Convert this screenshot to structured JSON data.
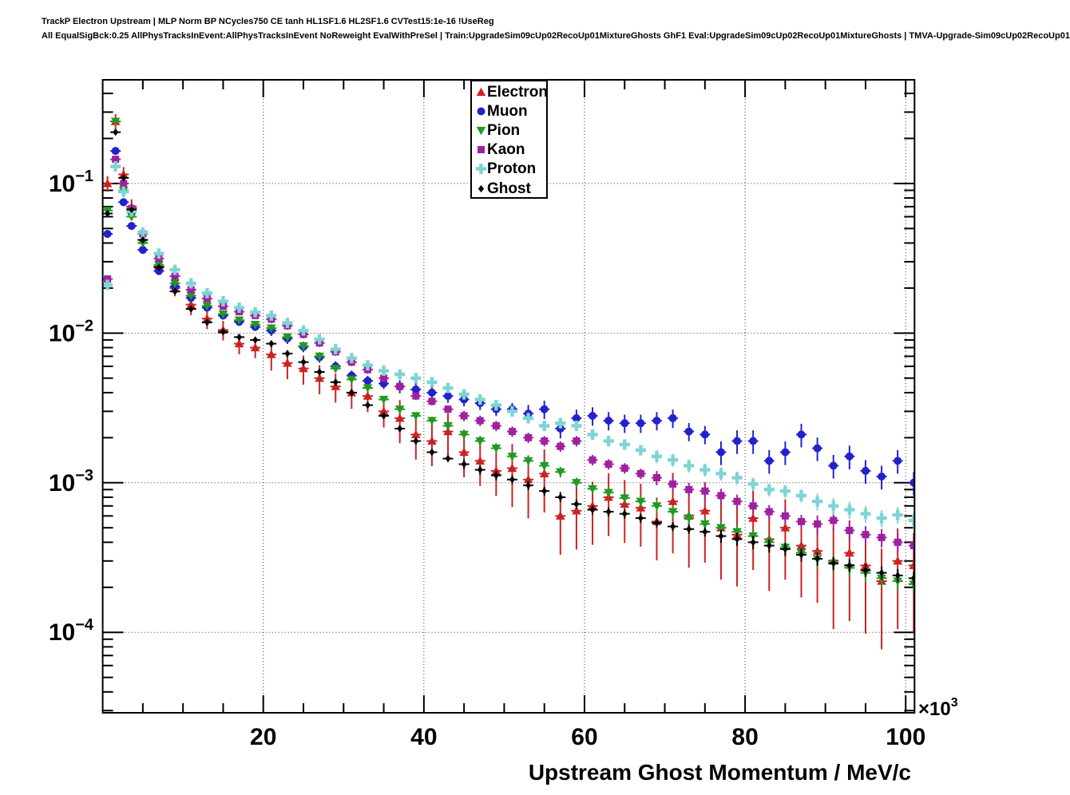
{
  "header": {
    "line1": "TrackP Electron Upstream | MLP Norm BP NCycles750 CE tanh HL1SF1.6 HL2SF1.6 CVTest15:1e-16 !UseReg",
    "line2": "All EqualSigBck:0.25 AllPhysTracksInEvent:AllPhysTracksInEvent NoReweight EvalWithPreSel | Train:UpgradeSim09cUp02RecoUp01MixtureGhosts GhF1 Eval:UpgradeSim09cUp02RecoUp01MixtureGhosts | TMVA-Upgrade-Sim09cUp02RecoUp01"
  },
  "chart_data": {
    "type": "scatter",
    "title": "",
    "xlabel": "Upstream Ghost Momentum / MeV/c",
    "ylabel": "",
    "x_multiplier": {
      "base": "×10",
      "exp": "3"
    },
    "xlim": [
      0,
      101.1
    ],
    "ylim": [
      2.9e-05,
      0.493
    ],
    "x_ticks": [
      20,
      40,
      60,
      80,
      100
    ],
    "x_minor_step": 5,
    "y_major_exponents": [
      -1,
      -2,
      -3,
      -4
    ],
    "y_scale": "log",
    "grid": "dotted",
    "legend_position": "top-center",
    "legend_labels": [
      "Electron",
      "Muon",
      "Pion",
      "Kaon",
      "Proton",
      "Ghost"
    ],
    "x": [
      0.6,
      1.6,
      2.6,
      3.6,
      5,
      7,
      9,
      11,
      13,
      15,
      17,
      19,
      21,
      23,
      25,
      27,
      29,
      31,
      33,
      35,
      37,
      39,
      41,
      43,
      45,
      47,
      49,
      51,
      53,
      55,
      57,
      59,
      61,
      63,
      65,
      67,
      69,
      71,
      73,
      75,
      77,
      79,
      81,
      83,
      85,
      87,
      89,
      91,
      93,
      95,
      97,
      99,
      101
    ],
    "series": [
      {
        "name": "Electron",
        "color": "#cc2222",
        "marker": "triangle-up",
        "values": [
          0.1,
          0.26,
          0.115,
          0.07,
          0.042,
          0.028,
          0.02,
          0.0155,
          0.0125,
          0.0105,
          0.0085,
          0.008,
          0.0072,
          0.0063,
          0.0058,
          0.005,
          0.0044,
          0.004,
          0.0038,
          0.003,
          0.0027,
          0.0021,
          0.0019,
          0.0022,
          0.0016,
          0.0014,
          0.0012,
          0.00125,
          0.00105,
          0.00115,
          0.0006,
          0.00065,
          0.0007,
          0.0008,
          0.00072,
          0.00068,
          0.00055,
          0.00075,
          0.0006,
          0.00065,
          0.0005,
          0.00045,
          0.00058,
          0.00042,
          0.0005,
          0.00038,
          0.00035,
          0.0003,
          0.00034,
          0.00028,
          0.00022,
          0.0003,
          0.00028
        ],
        "err_frac": [
          0.12,
          0.12,
          0.12,
          0.12,
          0.12,
          0.12,
          0.12,
          0.15,
          0.15,
          0.15,
          0.15,
          0.15,
          0.22,
          0.22,
          0.22,
          0.22,
          0.22,
          0.22,
          0.22,
          0.22,
          0.32,
          0.32,
          0.32,
          0.32,
          0.32,
          0.32,
          0.32,
          0.45,
          0.45,
          0.45,
          0.45,
          0.45,
          0.45,
          0.45,
          0.45,
          0.45,
          0.45,
          0.55,
          0.55,
          0.55,
          0.55,
          0.55,
          0.55,
          0.55,
          0.55,
          0.55,
          0.55,
          0.65,
          0.65,
          0.65,
          0.65,
          0.65,
          0.65
        ]
      },
      {
        "name": "Muon",
        "color": "#2222cc",
        "marker": "circle",
        "values": [
          0.046,
          0.165,
          0.075,
          0.052,
          0.036,
          0.026,
          0.0205,
          0.0172,
          0.0148,
          0.0131,
          0.0119,
          0.011,
          0.0104,
          0.0092,
          0.0081,
          0.0069,
          0.006,
          0.0052,
          0.0048,
          0.0046,
          0.0044,
          0.0042,
          0.004,
          0.0038,
          0.0036,
          0.0034,
          0.0031,
          0.0031,
          0.0029,
          0.0031,
          0.0023,
          0.0027,
          0.0028,
          0.0026,
          0.0025,
          0.0025,
          0.0026,
          0.0027,
          0.0022,
          0.0021,
          0.0016,
          0.0019,
          0.0019,
          0.0014,
          0.0016,
          0.0021,
          0.0017,
          0.0013,
          0.0015,
          0.0012,
          0.0011,
          0.0014,
          0.001
        ],
        "err_frac": [
          0.06,
          0.06,
          0.06,
          0.06,
          0.06,
          0.06,
          0.06,
          0.06,
          0.06,
          0.06,
          0.06,
          0.06,
          0.08,
          0.08,
          0.08,
          0.08,
          0.08,
          0.08,
          0.08,
          0.08,
          0.1,
          0.1,
          0.1,
          0.1,
          0.1,
          0.1,
          0.1,
          0.1,
          0.14,
          0.14,
          0.14,
          0.14,
          0.14,
          0.14,
          0.14,
          0.14,
          0.14,
          0.14,
          0.14,
          0.14,
          0.18,
          0.18,
          0.18,
          0.18,
          0.18,
          0.18,
          0.18,
          0.18,
          0.18,
          0.18,
          0.18,
          0.18,
          0.18
        ]
      },
      {
        "name": "Pion",
        "color": "#229922",
        "marker": "triangle-down",
        "values": [
          0.066,
          0.26,
          0.09,
          0.06,
          0.04,
          0.0285,
          0.0215,
          0.0178,
          0.0152,
          0.0134,
          0.0122,
          0.0114,
          0.0108,
          0.0094,
          0.0082,
          0.007,
          0.0058,
          0.0049,
          0.0043,
          0.0036,
          0.0031,
          0.0028,
          0.0026,
          0.0024,
          0.0021,
          0.0019,
          0.0017,
          0.0015,
          0.0014,
          0.0013,
          0.00118,
          0.001,
          0.00091,
          0.00086,
          0.00079,
          0.00075,
          0.0007,
          0.00064,
          0.00058,
          0.00053,
          0.0005,
          0.00047,
          0.00044,
          0.0004,
          0.00037,
          0.00034,
          0.00031,
          0.00029,
          0.00027,
          0.00025,
          0.00023,
          0.00022,
          0.00021
        ],
        "err_frac": [
          0.05,
          0.05,
          0.05,
          0.05,
          0.05,
          0.05,
          0.05,
          0.05,
          0.05,
          0.05,
          0.05,
          0.05,
          0.06,
          0.06,
          0.06,
          0.06,
          0.06,
          0.06,
          0.06,
          0.06,
          0.06,
          0.06,
          0.06,
          0.06,
          0.08,
          0.08,
          0.08,
          0.08,
          0.08,
          0.08,
          0.08,
          0.08,
          0.08,
          0.08,
          0.08,
          0.08,
          0.1,
          0.1,
          0.1,
          0.1,
          0.1,
          0.1,
          0.1,
          0.1,
          0.1,
          0.1,
          0.13,
          0.13,
          0.13,
          0.13,
          0.13,
          0.13,
          0.13
        ]
      },
      {
        "name": "Kaon",
        "color": "#a020a0",
        "marker": "square",
        "values": [
          0.023,
          0.145,
          0.1,
          0.068,
          0.046,
          0.0315,
          0.024,
          0.0195,
          0.017,
          0.0151,
          0.0139,
          0.0131,
          0.0124,
          0.0112,
          0.0098,
          0.0086,
          0.0075,
          0.0064,
          0.0057,
          0.005,
          0.0044,
          0.0038,
          0.0035,
          0.0031,
          0.0028,
          0.0026,
          0.0024,
          0.0022,
          0.002,
          0.0019,
          0.00175,
          0.0019,
          0.00142,
          0.00133,
          0.00125,
          0.00115,
          0.00108,
          0.00098,
          0.0009,
          0.00088,
          0.00082,
          0.00075,
          0.0007,
          0.00064,
          0.0006,
          0.00055,
          0.00053,
          0.00056,
          0.00048,
          0.00045,
          0.00043,
          0.0004,
          0.00038
        ],
        "err_frac": [
          0.05,
          0.05,
          0.05,
          0.05,
          0.05,
          0.05,
          0.05,
          0.05,
          0.05,
          0.05,
          0.05,
          0.05,
          0.06,
          0.06,
          0.06,
          0.06,
          0.06,
          0.06,
          0.06,
          0.06,
          0.06,
          0.06,
          0.06,
          0.06,
          0.08,
          0.08,
          0.08,
          0.08,
          0.08,
          0.08,
          0.08,
          0.08,
          0.08,
          0.08,
          0.08,
          0.08,
          0.11,
          0.11,
          0.11,
          0.11,
          0.11,
          0.11,
          0.11,
          0.11,
          0.11,
          0.11,
          0.14,
          0.14,
          0.14,
          0.14,
          0.14,
          0.14,
          0.14
        ]
      },
      {
        "name": "Proton",
        "color": "#7fd4d4",
        "marker": "plus",
        "values": [
          0.021,
          0.13,
          0.088,
          0.065,
          0.047,
          0.034,
          0.0265,
          0.0215,
          0.0185,
          0.0163,
          0.0148,
          0.0138,
          0.0131,
          0.0117,
          0.0104,
          0.0091,
          0.0078,
          0.0068,
          0.0061,
          0.0056,
          0.0053,
          0.005,
          0.0047,
          0.0043,
          0.0039,
          0.0036,
          0.0033,
          0.003,
          0.0027,
          0.0024,
          0.0025,
          0.0024,
          0.0021,
          0.0019,
          0.0018,
          0.00165,
          0.0015,
          0.00142,
          0.0013,
          0.00122,
          0.00115,
          0.00108,
          0.00098,
          0.0009,
          0.00088,
          0.00082,
          0.00075,
          0.0007,
          0.00066,
          0.00062,
          0.00058,
          0.00061,
          0.00056
        ],
        "err_frac": [
          0.05,
          0.05,
          0.05,
          0.05,
          0.05,
          0.05,
          0.05,
          0.05,
          0.05,
          0.05,
          0.05,
          0.05,
          0.06,
          0.06,
          0.06,
          0.06,
          0.06,
          0.06,
          0.06,
          0.06,
          0.06,
          0.06,
          0.06,
          0.06,
          0.08,
          0.08,
          0.08,
          0.08,
          0.08,
          0.08,
          0.08,
          0.08,
          0.08,
          0.08,
          0.08,
          0.08,
          0.1,
          0.1,
          0.1,
          0.1,
          0.1,
          0.1,
          0.1,
          0.1,
          0.1,
          0.1,
          0.13,
          0.13,
          0.13,
          0.13,
          0.13,
          0.13,
          0.13
        ]
      },
      {
        "name": "Ghost",
        "color": "#000000",
        "marker": "diamond",
        "values": [
          0.063,
          0.22,
          0.109,
          0.067,
          0.042,
          0.0275,
          0.019,
          0.0145,
          0.0118,
          0.0102,
          0.0094,
          0.009,
          0.0085,
          0.0073,
          0.0064,
          0.0055,
          0.0047,
          0.004,
          0.0033,
          0.0028,
          0.0023,
          0.0019,
          0.0016,
          0.00145,
          0.00133,
          0.00122,
          0.00112,
          0.00105,
          0.00096,
          0.00088,
          0.0008,
          0.00072,
          0.00066,
          0.00064,
          0.00062,
          0.00058,
          0.00054,
          0.00051,
          0.00049,
          0.00047,
          0.00044,
          0.00042,
          0.0004,
          0.00038,
          0.00036,
          0.00033,
          0.00031,
          0.00029,
          0.00028,
          0.00026,
          0.00025,
          0.00024,
          0.00023
        ],
        "err_frac": [
          0.04,
          0.04,
          0.04,
          0.04,
          0.04,
          0.04,
          0.04,
          0.04,
          0.04,
          0.04,
          0.04,
          0.04,
          0.05,
          0.05,
          0.05,
          0.05,
          0.05,
          0.05,
          0.05,
          0.05,
          0.05,
          0.05,
          0.05,
          0.05,
          0.07,
          0.07,
          0.07,
          0.07,
          0.07,
          0.07,
          0.07,
          0.07,
          0.07,
          0.07,
          0.07,
          0.07,
          0.07,
          0.07,
          0.07,
          0.07,
          0.1,
          0.1,
          0.1,
          0.1,
          0.1,
          0.1,
          0.1,
          0.1,
          0.1,
          0.1,
          0.1,
          0.1,
          0.1
        ]
      }
    ]
  }
}
